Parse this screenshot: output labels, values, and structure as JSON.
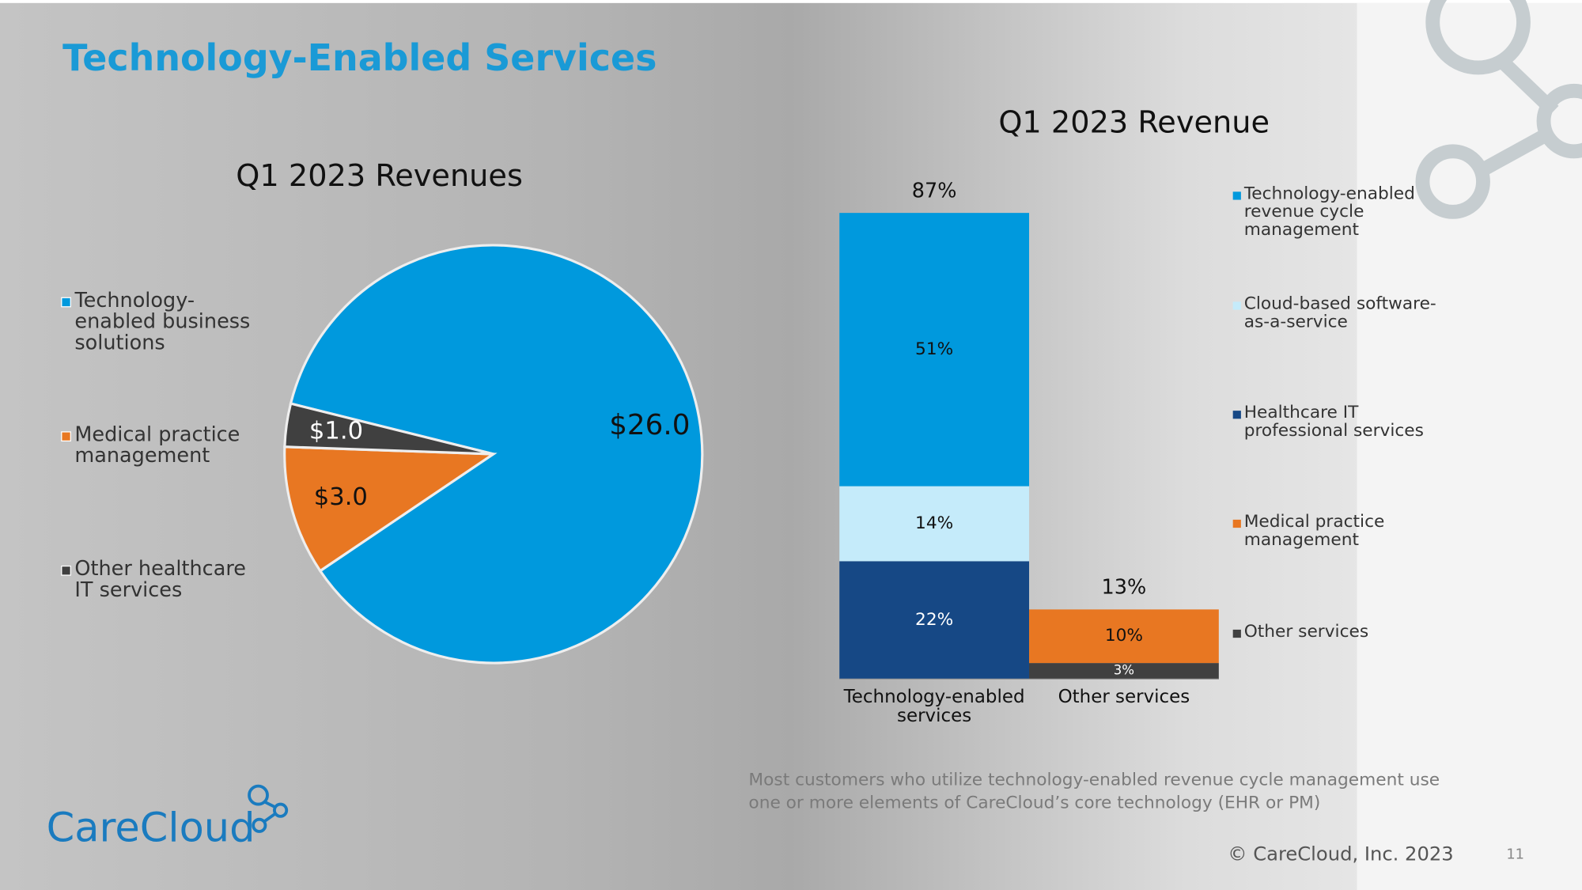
{
  "slide": {
    "title": "Technology-Enabled Services",
    "footnote": "Most customers who utilize technology-enabled revenue cycle management use one or more elements of CareCloud’s core technology (EHR or PM)",
    "copyright": "© CareCloud, Inc. 2023",
    "page_number": 11,
    "logo": "CareCloud"
  },
  "chart_data": [
    {
      "type": "pie",
      "title": "Q1 2023 Revenues",
      "categories": [
        "Technology-enabled business solutions",
        "Medical practice management",
        "Other healthcare IT services"
      ],
      "values": [
        26.0,
        3.0,
        1.0
      ],
      "value_labels": [
        "$26.0",
        "$3.0",
        "$1.0"
      ],
      "colors": [
        "#0099dd",
        "#e87722",
        "#404040"
      ],
      "legend": "left"
    },
    {
      "type": "bar",
      "stacked": true,
      "title": "Q1 2023 Revenue",
      "categories": [
        "Technology-enabled services",
        "Other services"
      ],
      "series": [
        {
          "name": "Technology-enabled revenue cycle management",
          "color": "#0099dd",
          "values": [
            51,
            null
          ],
          "value_labels": [
            "51%",
            null
          ]
        },
        {
          "name": "Cloud-based software-as-a-service",
          "color": "#c5ebfa",
          "values": [
            14,
            null
          ],
          "value_labels": [
            "14%",
            null
          ]
        },
        {
          "name": "Healthcare IT professional services",
          "color": "#164885",
          "values": [
            22,
            null
          ],
          "value_labels": [
            "22%",
            null
          ]
        },
        {
          "name": "Medical practice management",
          "color": "#e87722",
          "values": [
            null,
            10
          ],
          "value_labels": [
            null,
            "10%"
          ]
        },
        {
          "name": "Other services",
          "color": "#404040",
          "values": [
            null,
            3
          ],
          "value_labels": [
            null,
            "3%"
          ]
        }
      ],
      "totals": [
        87,
        13
      ],
      "total_labels": [
        "87%",
        "13%"
      ],
      "legend": "right"
    }
  ]
}
